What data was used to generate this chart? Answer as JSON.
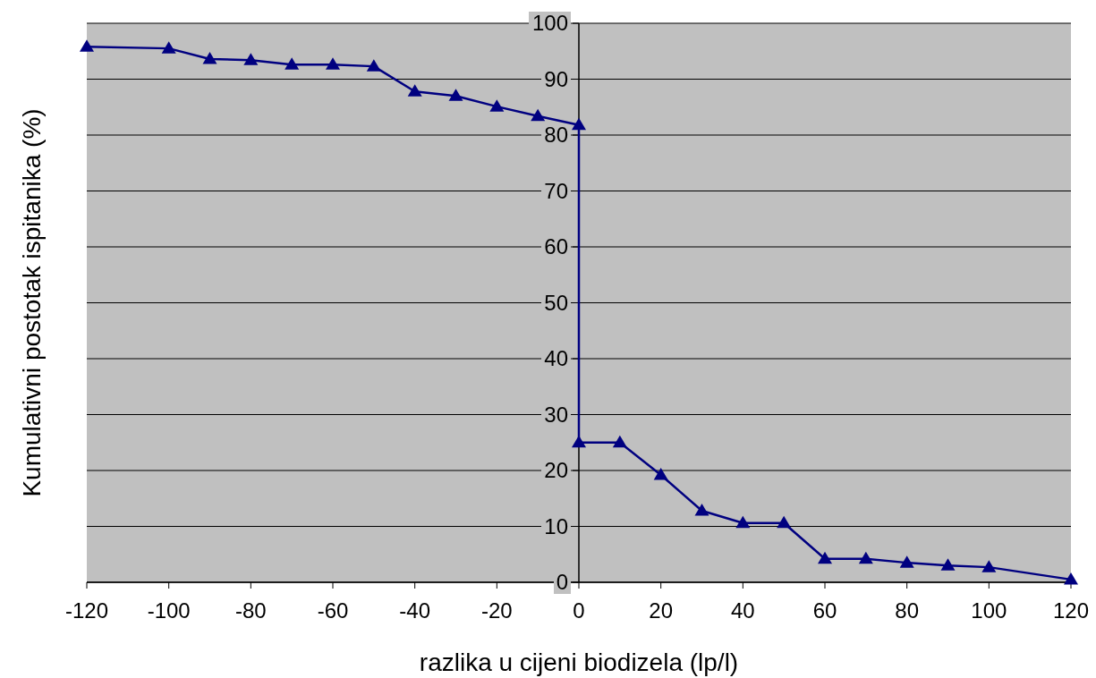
{
  "chart_data": {
    "type": "line",
    "xlabel": "razlika u cijeni biodizela (lp/l)",
    "ylabel": "Kumulativni postotak ispitanika (%)",
    "xlim": [
      -120,
      120
    ],
    "xticks": [
      -120,
      -100,
      -80,
      -60,
      -40,
      -20,
      0,
      20,
      40,
      60,
      80,
      100,
      120
    ],
    "ylim": [
      0,
      100
    ],
    "yticks": [
      0,
      10,
      20,
      30,
      40,
      50,
      60,
      70,
      80,
      90,
      100
    ],
    "grid": "y",
    "marker": "triangle",
    "line_style": "solid",
    "series": [
      {
        "color": "#000080",
        "x": [
          -120,
          -100,
          -90,
          -80,
          -70,
          -60,
          -50,
          -40,
          -30,
          -20,
          -10,
          0,
          0,
          10,
          20,
          30,
          40,
          50,
          60,
          70,
          80,
          90,
          100,
          120
        ],
        "values": [
          95.8,
          95.5,
          93.6,
          93.4,
          92.6,
          92.6,
          92.3,
          87.8,
          87.0,
          85.1,
          83.4,
          81.8,
          25.0,
          25.0,
          19.2,
          12.8,
          10.6,
          10.6,
          4.2,
          4.2,
          3.5,
          3.0,
          2.7,
          0.5
        ]
      }
    ]
  }
}
